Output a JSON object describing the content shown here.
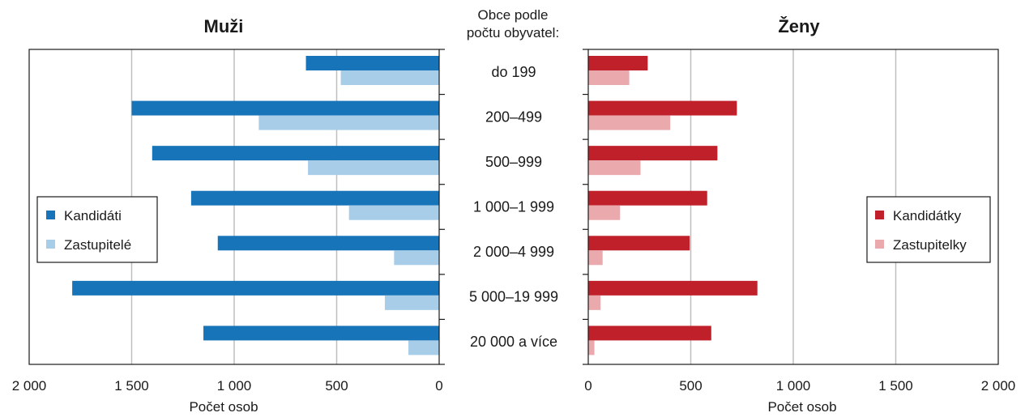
{
  "center_header": [
    "Obce podle",
    "počtu obyvatel:"
  ],
  "chart_data": [
    {
      "type": "bar",
      "orientation": "horizontal",
      "title": "Muži",
      "xlabel": "Počet osob",
      "xlim": [
        0,
        2000
      ],
      "x_reversed": true,
      "x_ticks": [
        2000,
        1500,
        1000,
        500,
        0
      ],
      "x_tick_labels": [
        "2 000",
        "1 500",
        "1 000",
        "500",
        "0"
      ],
      "grid": true,
      "legend_position": "left",
      "categories": [
        "do 199",
        "200–499",
        "500–999",
        "1 000–1 999",
        "2 000–4 999",
        "5 000–19 999",
        "20 000 a více"
      ],
      "series": [
        {
          "name": "Kandidáti",
          "color": "#1874b9",
          "values": [
            650,
            1500,
            1400,
            1210,
            1080,
            1790,
            1150
          ]
        },
        {
          "name": "Zastupitelé",
          "color": "#a8cde8",
          "values": [
            480,
            880,
            640,
            440,
            220,
            265,
            150
          ]
        }
      ]
    },
    {
      "type": "bar",
      "orientation": "horizontal",
      "title": "Ženy",
      "xlabel": "Počet osob",
      "xlim": [
        0,
        2000
      ],
      "x_reversed": false,
      "x_ticks": [
        0,
        500,
        1000,
        1500,
        2000
      ],
      "x_tick_labels": [
        "0",
        "500",
        "1 000",
        "1 500",
        "2 000"
      ],
      "grid": true,
      "legend_position": "right",
      "categories": [
        "do 199",
        "200–499",
        "500–999",
        "1 000–1 999",
        "2 000–4 999",
        "5 000–19 999",
        "20 000 a více"
      ],
      "series": [
        {
          "name": "Kandidátky",
          "color": "#c0202a",
          "values": [
            290,
            725,
            630,
            580,
            495,
            825,
            600
          ]
        },
        {
          "name": "Zastupitelky",
          "color": "#e9a9ad",
          "values": [
            200,
            400,
            255,
            155,
            70,
            60,
            30
          ]
        }
      ]
    }
  ]
}
